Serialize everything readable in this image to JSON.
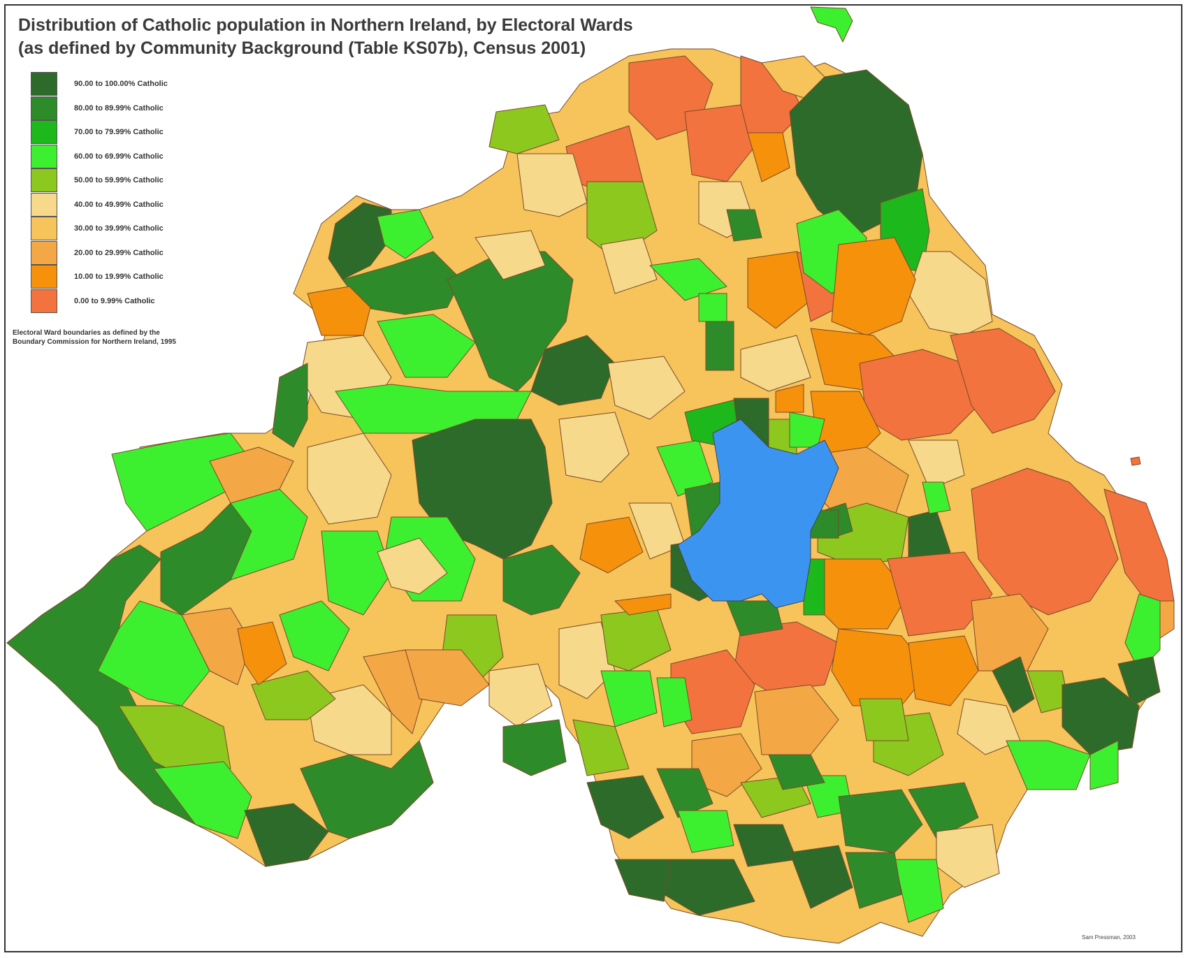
{
  "title": {
    "line1": "Distribution of Catholic population in Northern Ireland, by Electoral Wards",
    "line2": "(as defined by Community Background (Table KS07b), Census 2001)"
  },
  "legend": [
    {
      "label": "90.00 to 100.00% Catholic",
      "color": "#2d6b2a"
    },
    {
      "label": "80.00 to 89.99% Catholic",
      "color": "#2e8b2a"
    },
    {
      "label": "70.00 to 79.99% Catholic",
      "color": "#1cb81c"
    },
    {
      "label": "60.00 to 69.99% Catholic",
      "color": "#3df02f"
    },
    {
      "label": "50.00 to 59.99% Catholic",
      "color": "#8cc81e"
    },
    {
      "label": "40.00 to 49.99% Catholic",
      "color": "#f6d98a"
    },
    {
      "label": "30.00 to 39.99% Catholic",
      "color": "#f6c45a"
    },
    {
      "label": "20.00 to 29.99% Catholic",
      "color": "#f4a745"
    },
    {
      "label": "10.00 to 19.99% Catholic",
      "color": "#f6910c"
    },
    {
      "label": "0.00 to 9.99% Catholic",
      "color": "#f2733e"
    }
  ],
  "note": {
    "line1": "Electoral Ward boundaries as defined by the",
    "line2": "Boundary Commission for Northern Ireland, 1995"
  },
  "credit": "Sam Pressman, 2003",
  "lake_color": "#3b94f0"
}
